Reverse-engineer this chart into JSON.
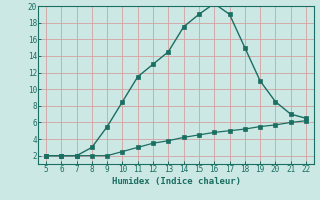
{
  "xlabel": "Humidex (Indice chaleur)",
  "x_main": [
    5,
    6,
    7,
    8,
    9,
    10,
    11,
    12,
    13,
    14,
    15,
    16,
    17,
    18,
    19,
    20,
    21,
    22
  ],
  "y_main": [
    2,
    2,
    2,
    3,
    5.5,
    8.5,
    11.5,
    13,
    14.5,
    17.5,
    19,
    20.3,
    19,
    15,
    11,
    8.5,
    7,
    6.5
  ],
  "x_flat": [
    5,
    6,
    7,
    8,
    9,
    10,
    11,
    12,
    13,
    14,
    15,
    16,
    17,
    18,
    19,
    20,
    21,
    22
  ],
  "y_flat": [
    2,
    2,
    2,
    2,
    2,
    2.5,
    3,
    3.5,
    3.8,
    4.2,
    4.5,
    4.8,
    5.0,
    5.2,
    5.5,
    5.7,
    6.0,
    6.2
  ],
  "line_color": "#1a6e62",
  "bg_color": "#cce8e4",
  "grid_color": "#d4a0a0",
  "tick_color": "#1a6e62",
  "spine_color": "#1a6e62",
  "xlim": [
    4.5,
    22.5
  ],
  "ylim": [
    1,
    20
  ],
  "yticks": [
    2,
    4,
    6,
    8,
    10,
    12,
    14,
    16,
    18,
    20
  ],
  "xticks": [
    5,
    6,
    7,
    8,
    9,
    10,
    11,
    12,
    13,
    14,
    15,
    16,
    17,
    18,
    19,
    20,
    21,
    22
  ]
}
